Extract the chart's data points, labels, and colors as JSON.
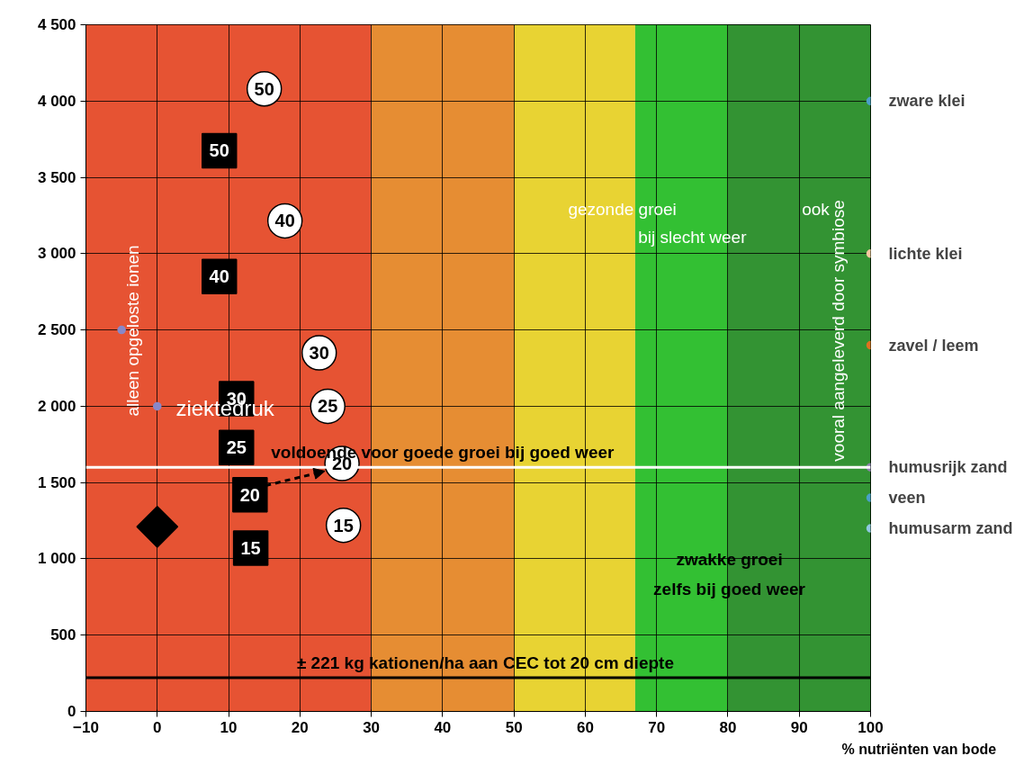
{
  "chart_data": {
    "type": "scatter",
    "xlabel": "% nutriënten van bode",
    "xlim": [
      -10,
      100
    ],
    "xticks": [
      -10,
      0,
      10,
      20,
      30,
      40,
      50,
      60,
      70,
      80,
      90,
      100
    ],
    "ylim": [
      0,
      4500
    ],
    "yticks": [
      0,
      500,
      {
        "value": 1000,
        "label": "1 000"
      },
      {
        "value": 1500,
        "label": "1 500"
      },
      {
        "value": 2000,
        "label": "2 000"
      },
      {
        "value": 2500,
        "label": "2 500"
      },
      {
        "value": 3000,
        "label": "3 000"
      },
      {
        "value": 3500,
        "label": "3 500"
      },
      {
        "value": 4000,
        "label": "4 000"
      },
      {
        "value": 4500,
        "label": "4 500"
      }
    ],
    "grid": true,
    "bands": [
      {
        "axis": "x",
        "from": -10,
        "to": 30,
        "color": "#e02800"
      },
      {
        "axis": "x",
        "from": 30,
        "to": 50,
        "color": "#e07000"
      },
      {
        "axis": "x",
        "from": 50,
        "to": 67,
        "color": "#e2c800"
      },
      {
        "axis": "x",
        "from": 67,
        "to": 80,
        "color": "#00b000"
      },
      {
        "axis": "x",
        "from": 80,
        "to": 100,
        "color": "#007800"
      }
    ],
    "ref_lines": [
      {
        "axis": "y",
        "value": 1600,
        "label": "voldoende voor goede groei bij goed weer",
        "color": "#ffffff"
      },
      {
        "axis": "y",
        "value": 221,
        "label": "± 221 kg kationen/ha aan CEC tot 20 cm diepte",
        "color": "#000000"
      }
    ],
    "series": [
      {
        "marker": "circle",
        "color": "#ffffff",
        "x": [
          15,
          17.9,
          22.7,
          23.9,
          25.9,
          26.1
        ],
        "values": [
          4080,
          3215,
          2350,
          2000,
          1625,
          1220
        ]
      },
      {
        "marker": "square",
        "color": "#000000",
        "x": [
          8.7,
          8.7,
          11.1,
          11.1,
          13,
          13.1
        ],
        "values": [
          3675,
          2850,
          2050,
          1730,
          1420,
          1070
        ]
      },
      {
        "marker": "diamond",
        "color": "#000000",
        "x": [
          0
        ],
        "values": [
          1210
        ]
      },
      {
        "marker": "circle",
        "color": "#8888c8",
        "x": [
          -5,
          0
        ],
        "values": [
          2500,
          2000
        ]
      },
      {
        "name": "zware klei",
        "marker": "circle",
        "color": "#4aa0c8",
        "x": [
          100
        ],
        "values": [
          4000
        ]
      },
      {
        "name": "lichte klei",
        "marker": "circle",
        "color": "#f8c8a0",
        "x": [
          100
        ],
        "values": [
          3000
        ]
      },
      {
        "name": "zavel / leem",
        "marker": "circle",
        "color": "#e07020",
        "x": [
          100
        ],
        "values": [
          2400
        ]
      },
      {
        "name": "humusrijk zand",
        "marker": "circle",
        "color": "#9080b0",
        "x": [
          100
        ],
        "values": [
          1600
        ]
      },
      {
        "name": "veen",
        "marker": "circle",
        "color": "#4aa0c8",
        "x": [
          100
        ],
        "values": [
          1400
        ]
      },
      {
        "name": "humusarm zand",
        "marker": "circle",
        "color": "#90c8e0",
        "x": [
          100
        ],
        "values": [
          1200
        ]
      }
    ],
    "annotations": [
      "alleen opgeloste ionen",
      "ziektedruk",
      "gezonde groei",
      "ook",
      "bij slecht weer",
      "vooral aangeleverd door symbiose",
      "zwakke groei",
      "zelfs bij goed weer",
      {
        "text": "50",
        "x": 15,
        "y": 4080
      },
      {
        "text": "40",
        "x": 17.9,
        "y": 3215
      },
      {
        "text": "30",
        "x": 22.7,
        "y": 2350
      },
      {
        "text": "25",
        "x": 23.9,
        "y": 2000
      },
      {
        "text": "20",
        "x": 25.9,
        "y": 1625
      },
      {
        "text": "15",
        "x": 26.1,
        "y": 1220
      },
      {
        "text": "50",
        "x": 8.7,
        "y": 3675
      },
      {
        "text": "40",
        "x": 8.7,
        "y": 2850
      },
      {
        "text": "30",
        "x": 11.1,
        "y": 2050
      },
      {
        "text": "25",
        "x": 11.1,
        "y": 1730
      },
      {
        "text": "20",
        "x": 13,
        "y": 1420
      },
      {
        "text": "15",
        "x": 13.1,
        "y": 1070
      }
    ]
  }
}
